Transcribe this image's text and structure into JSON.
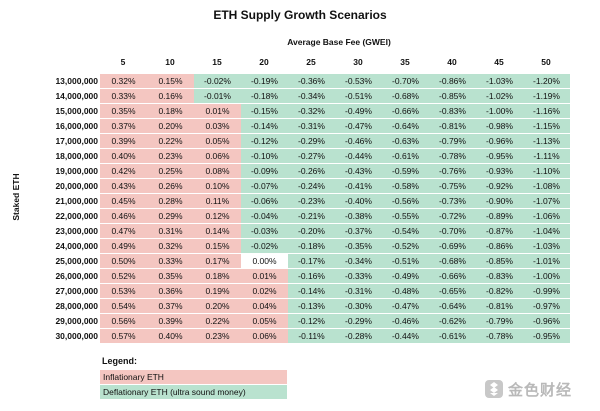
{
  "title": "ETH Supply Growth Scenarios",
  "watermark_text": "金色财经",
  "colors": {
    "inflationary": "#f4c6c1",
    "deflationary": "#b9e2cf"
  },
  "legend": {
    "title": "Legend:",
    "inflationary": "Inflationary ETH",
    "deflationary": "Deflationary ETH (ultra sound money)"
  },
  "chart_data": {
    "type": "heatmap",
    "title": "ETH Supply Growth Scenarios",
    "xlabel": "Average Base Fee (GWEI)",
    "ylabel": "Staked ETH",
    "x": [
      "5",
      "10",
      "15",
      "20",
      "25",
      "30",
      "35",
      "40",
      "45",
      "50"
    ],
    "y": [
      "13,000,000",
      "14,000,000",
      "15,000,000",
      "16,000,000",
      "17,000,000",
      "18,000,000",
      "19,000,000",
      "20,000,000",
      "21,000,000",
      "22,000,000",
      "23,000,000",
      "24,000,000",
      "25,000,000",
      "26,000,000",
      "27,000,000",
      "28,000,000",
      "29,000,000",
      "30,000,000"
    ],
    "values": [
      [
        "0.32%",
        "0.15%",
        "-0.02%",
        "-0.19%",
        "-0.36%",
        "-0.53%",
        "-0.70%",
        "-0.86%",
        "-1.03%",
        "-1.20%"
      ],
      [
        "0.33%",
        "0.16%",
        "-0.01%",
        "-0.18%",
        "-0.34%",
        "-0.51%",
        "-0.68%",
        "-0.85%",
        "-1.02%",
        "-1.19%"
      ],
      [
        "0.35%",
        "0.18%",
        "0.01%",
        "-0.15%",
        "-0.32%",
        "-0.49%",
        "-0.66%",
        "-0.83%",
        "-1.00%",
        "-1.16%"
      ],
      [
        "0.37%",
        "0.20%",
        "0.03%",
        "-0.14%",
        "-0.31%",
        "-0.47%",
        "-0.64%",
        "-0.81%",
        "-0.98%",
        "-1.15%"
      ],
      [
        "0.39%",
        "0.22%",
        "0.05%",
        "-0.12%",
        "-0.29%",
        "-0.46%",
        "-0.63%",
        "-0.79%",
        "-0.96%",
        "-1.13%"
      ],
      [
        "0.40%",
        "0.23%",
        "0.06%",
        "-0.10%",
        "-0.27%",
        "-0.44%",
        "-0.61%",
        "-0.78%",
        "-0.95%",
        "-1.11%"
      ],
      [
        "0.42%",
        "0.25%",
        "0.08%",
        "-0.09%",
        "-0.26%",
        "-0.43%",
        "-0.59%",
        "-0.76%",
        "-0.93%",
        "-1.10%"
      ],
      [
        "0.43%",
        "0.26%",
        "0.10%",
        "-0.07%",
        "-0.24%",
        "-0.41%",
        "-0.58%",
        "-0.75%",
        "-0.92%",
        "-1.08%"
      ],
      [
        "0.45%",
        "0.28%",
        "0.11%",
        "-0.06%",
        "-0.23%",
        "-0.40%",
        "-0.56%",
        "-0.73%",
        "-0.90%",
        "-1.07%"
      ],
      [
        "0.46%",
        "0.29%",
        "0.12%",
        "-0.04%",
        "-0.21%",
        "-0.38%",
        "-0.55%",
        "-0.72%",
        "-0.89%",
        "-1.06%"
      ],
      [
        "0.47%",
        "0.31%",
        "0.14%",
        "-0.03%",
        "-0.20%",
        "-0.37%",
        "-0.54%",
        "-0.70%",
        "-0.87%",
        "-1.04%"
      ],
      [
        "0.49%",
        "0.32%",
        "0.15%",
        "-0.02%",
        "-0.18%",
        "-0.35%",
        "-0.52%",
        "-0.69%",
        "-0.86%",
        "-1.03%"
      ],
      [
        "0.50%",
        "0.33%",
        "0.17%",
        "0.00%",
        "-0.17%",
        "-0.34%",
        "-0.51%",
        "-0.68%",
        "-0.85%",
        "-1.01%"
      ],
      [
        "0.52%",
        "0.35%",
        "0.18%",
        "0.01%",
        "-0.16%",
        "-0.33%",
        "-0.49%",
        "-0.66%",
        "-0.83%",
        "-1.00%"
      ],
      [
        "0.53%",
        "0.36%",
        "0.19%",
        "0.02%",
        "-0.14%",
        "-0.31%",
        "-0.48%",
        "-0.65%",
        "-0.82%",
        "-0.99%"
      ],
      [
        "0.54%",
        "0.37%",
        "0.20%",
        "0.04%",
        "-0.13%",
        "-0.30%",
        "-0.47%",
        "-0.64%",
        "-0.81%",
        "-0.97%"
      ],
      [
        "0.56%",
        "0.39%",
        "0.22%",
        "0.05%",
        "-0.12%",
        "-0.29%",
        "-0.46%",
        "-0.62%",
        "-0.79%",
        "-0.96%"
      ],
      [
        "0.57%",
        "0.40%",
        "0.23%",
        "0.06%",
        "-0.11%",
        "-0.28%",
        "-0.44%",
        "-0.61%",
        "-0.78%",
        "-0.95%"
      ]
    ],
    "legend_placement": "bottom-left",
    "grid": false
  }
}
